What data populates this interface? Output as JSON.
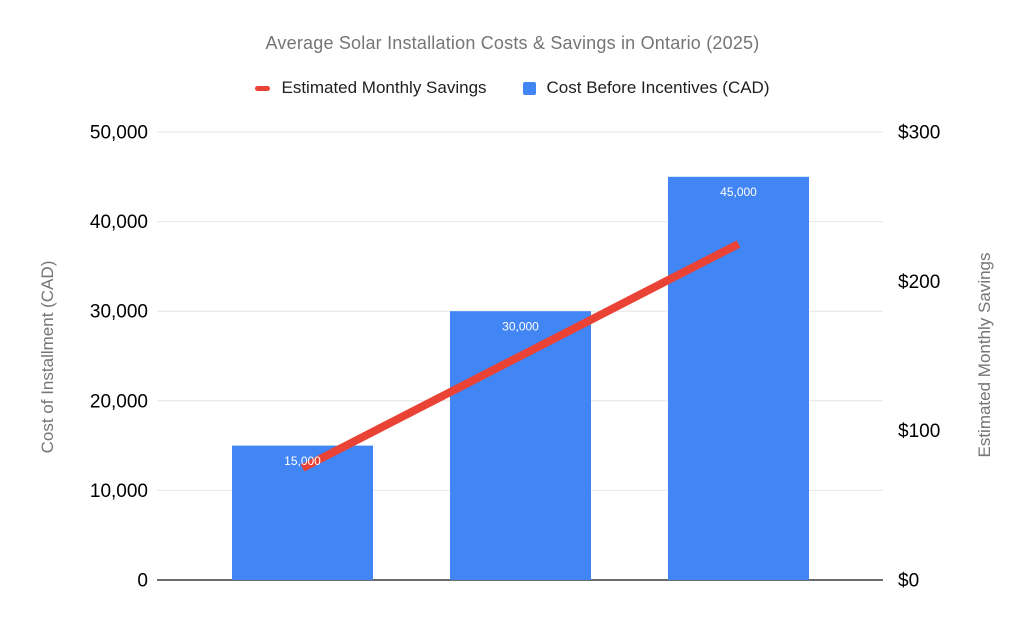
{
  "chart_data": {
    "type": "combo",
    "title": "Average Solar Installation Costs & Savings in Ontario (2025)",
    "legend_position": "top",
    "grid": true,
    "background": "#ffffff",
    "left_axis": {
      "label": "Cost of Installment (CAD)",
      "range": [
        0,
        50000
      ],
      "ticks": [
        {
          "value": 0,
          "label": "0"
        },
        {
          "value": 10000,
          "label": "10,000"
        },
        {
          "value": 20000,
          "label": "20,000"
        },
        {
          "value": 30000,
          "label": "30,000"
        },
        {
          "value": 40000,
          "label": "40,000"
        },
        {
          "value": 50000,
          "label": "50,000"
        }
      ]
    },
    "right_axis": {
      "label": "Estimated Monthly Savings",
      "range": [
        0,
        300
      ],
      "ticks": [
        {
          "value": 0,
          "label": "$0"
        },
        {
          "value": 100,
          "label": "$100"
        },
        {
          "value": 200,
          "label": "$200"
        },
        {
          "value": 300,
          "label": "$300"
        }
      ]
    },
    "series": [
      {
        "name": "Estimated Monthly Savings",
        "type": "line",
        "axis": "right",
        "color": "#ea4335",
        "values": [
          75,
          150,
          225
        ]
      },
      {
        "name": "Cost Before Incentives (CAD)",
        "type": "bar",
        "axis": "left",
        "color": "#4285f4",
        "values": [
          15000,
          30000,
          45000
        ],
        "data_labels": [
          "15,000",
          "30,000",
          "45,000"
        ],
        "label_color": "#ffffff"
      }
    ],
    "colors": {
      "grid": "#e6e6e6",
      "baseline": "#3c3c3c",
      "title": "#757575",
      "axis_title": "#757575",
      "tick_label": "#000000"
    }
  }
}
